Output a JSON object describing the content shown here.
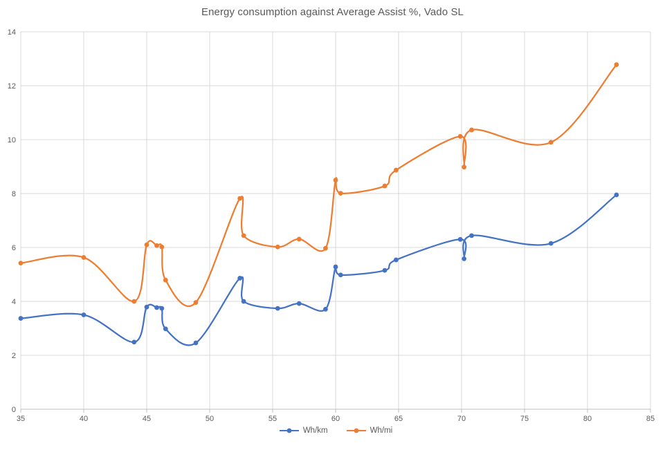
{
  "title": "Energy consumption against Average Assist %, Vado SL",
  "chart_data": {
    "type": "line",
    "title": "Energy consumption against Average Assist %, Vado SL",
    "xlabel": "",
    "ylabel": "",
    "grid": true,
    "smooth": true,
    "legend_position": "bottom",
    "x_axis": {
      "min": 35,
      "max": 85,
      "ticks": [
        35,
        40,
        45,
        50,
        55,
        60,
        65,
        70,
        75,
        80,
        85
      ]
    },
    "y_axis": {
      "min": 0,
      "max": 14,
      "ticks": [
        0,
        2,
        4,
        6,
        8,
        10,
        12,
        14
      ]
    },
    "x": [
      35.0,
      40.0,
      44.0,
      45.0,
      45.8,
      46.2,
      46.5,
      48.9,
      52.4,
      52.7,
      55.4,
      57.1,
      59.2,
      60.0,
      60.4,
      63.9,
      64.8,
      69.9,
      70.2,
      70.8,
      77.1,
      82.3
    ],
    "series": [
      {
        "name": "Wh/km",
        "color": "#4472C4",
        "values": [
          3.37,
          3.5,
          2.49,
          3.79,
          3.77,
          3.74,
          2.98,
          2.46,
          4.86,
          4.0,
          3.74,
          3.92,
          3.71,
          5.28,
          4.98,
          5.15,
          5.54,
          6.3,
          5.58,
          6.44,
          6.15,
          7.95
        ]
      },
      {
        "name": "Wh/mi",
        "color": "#ED7D31",
        "values": [
          5.42,
          5.63,
          4.0,
          6.1,
          6.07,
          6.02,
          4.79,
          3.96,
          7.82,
          6.44,
          6.02,
          6.31,
          5.97,
          8.5,
          8.01,
          8.28,
          8.87,
          10.12,
          8.98,
          10.36,
          9.9,
          12.78
        ]
      }
    ],
    "colors": {
      "gridline": "#D9D9D9",
      "axis_line": "#BFBFBF",
      "tick_text": "#595959",
      "title_text": "#595959",
      "background": "#FFFFFF"
    }
  }
}
